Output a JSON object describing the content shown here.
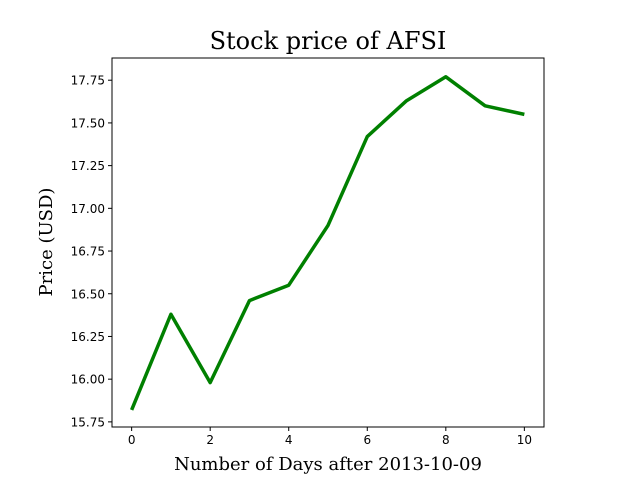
{
  "chart_data": {
    "type": "line",
    "title": "Stock price of AFSI",
    "xlabel": "Number of Days after 2013-10-09",
    "ylabel": "Price (USD)",
    "x": [
      0,
      1,
      2,
      3,
      4,
      5,
      6,
      7,
      8,
      9,
      10
    ],
    "series": [
      {
        "values": [
          15.82,
          16.38,
          15.98,
          16.46,
          16.55,
          16.9,
          17.42,
          17.63,
          17.77,
          17.6,
          17.55
        ],
        "color": "#008000"
      }
    ],
    "xlim": [
      -0.5,
      10.5
    ],
    "ylim": [
      15.72,
      17.88
    ],
    "xticks": [
      0,
      2,
      4,
      6,
      8,
      10
    ],
    "xtick_labels": [
      "0",
      "2",
      "4",
      "6",
      "8",
      "10"
    ],
    "yticks": [
      15.75,
      16.0,
      16.25,
      16.5,
      16.75,
      17.0,
      17.25,
      17.5,
      17.75
    ],
    "ytick_labels": [
      "15.75",
      "16.00",
      "16.25",
      "16.50",
      "16.75",
      "17.00",
      "17.25",
      "17.50",
      "17.75"
    ],
    "grid": false,
    "legend": "none"
  }
}
